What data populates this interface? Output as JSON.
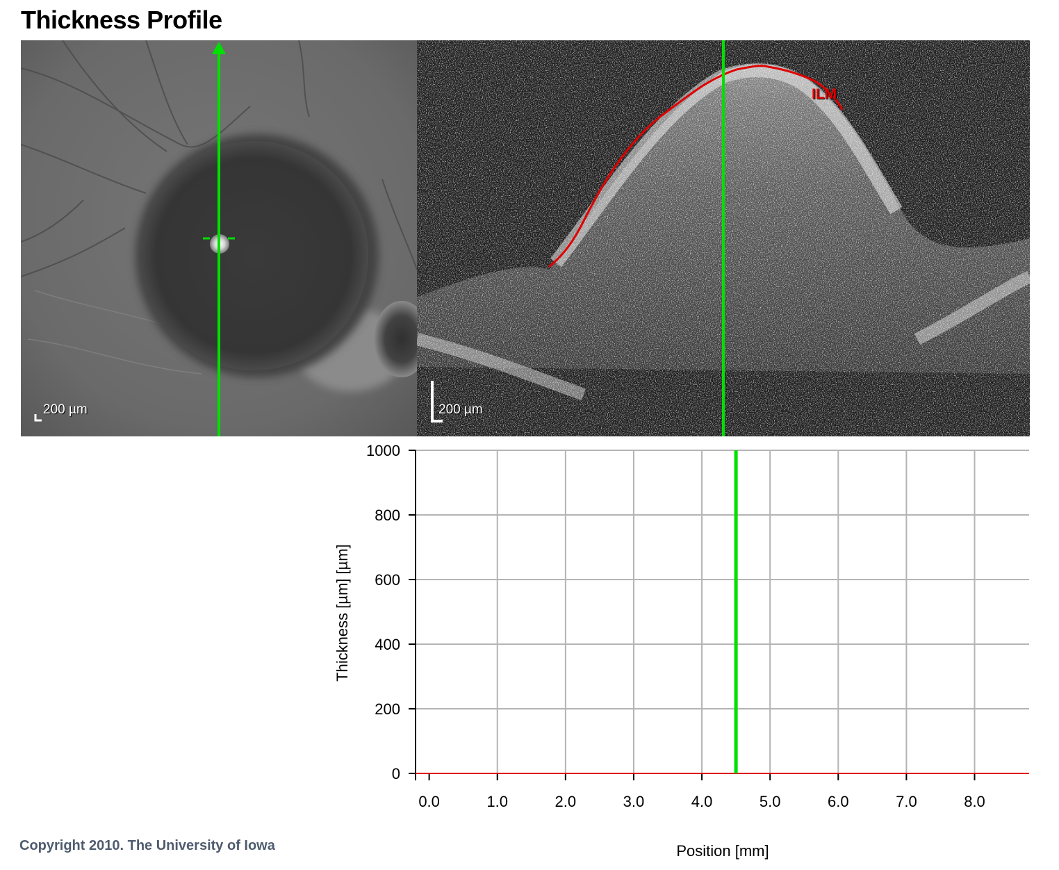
{
  "page": {
    "title": "Thickness Profile",
    "copyright": "Copyright 2010. The University of Iowa"
  },
  "fundus": {
    "scale_label": "200 µm",
    "marker_color": "#00e000"
  },
  "oct": {
    "scale_label": "200 µm",
    "layer_label": "ILM",
    "layer_color": "#e00000",
    "marker_color": "#00e000"
  },
  "chart_data": {
    "type": "line",
    "xlabel": "Position [mm]",
    "ylabel": "Thickness [µm] [µm]",
    "x_ticks": [
      "0.0",
      "1.0",
      "2.0",
      "3.0",
      "4.0",
      "5.0",
      "6.0",
      "7.0",
      "8.0"
    ],
    "y_ticks": [
      "0",
      "200",
      "400",
      "600",
      "800",
      "1000"
    ],
    "xlim": [
      -0.2,
      8.8
    ],
    "ylim": [
      0,
      1000
    ],
    "grid": true,
    "series": [
      {
        "color": "#e00000",
        "x": [
          -0.2,
          8.8
        ],
        "y": [
          0,
          0
        ]
      }
    ],
    "cursor_x": 4.5,
    "cursor_color": "#00e000"
  }
}
